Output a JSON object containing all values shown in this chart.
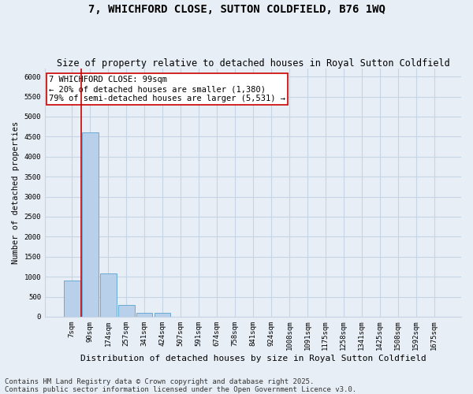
{
  "title": "7, WHICHFORD CLOSE, SUTTON COLDFIELD, B76 1WQ",
  "subtitle": "Size of property relative to detached houses in Royal Sutton Coldfield",
  "xlabel": "Distribution of detached houses by size in Royal Sutton Coldfield",
  "ylabel": "Number of detached properties",
  "categories": [
    "7sqm",
    "90sqm",
    "174sqm",
    "257sqm",
    "341sqm",
    "424sqm",
    "507sqm",
    "591sqm",
    "674sqm",
    "758sqm",
    "841sqm",
    "924sqm",
    "1008sqm",
    "1091sqm",
    "1175sqm",
    "1258sqm",
    "1341sqm",
    "1425sqm",
    "1508sqm",
    "1592sqm",
    "1675sqm"
  ],
  "values": [
    900,
    4600,
    1080,
    300,
    100,
    100,
    5,
    5,
    5,
    5,
    5,
    5,
    5,
    5,
    5,
    5,
    5,
    5,
    5,
    5,
    5
  ],
  "bar_color": "#b8d0ea",
  "bar_edge_color": "#6aaad4",
  "grid_color": "#c5d5e5",
  "background_color": "#e8eef5",
  "vline_x": 0.5,
  "vline_color": "#cc0000",
  "annotation_text": "7 WHICHFORD CLOSE: 99sqm\n← 20% of detached houses are smaller (1,380)\n79% of semi-detached houses are larger (5,531) →",
  "annotation_box_color": "white",
  "annotation_box_edge": "#cc0000",
  "ylim": [
    0,
    6200
  ],
  "yticks": [
    0,
    500,
    1000,
    1500,
    2000,
    2500,
    3000,
    3500,
    4000,
    4500,
    5000,
    5500,
    6000
  ],
  "footer_line1": "Contains HM Land Registry data © Crown copyright and database right 2025.",
  "footer_line2": "Contains public sector information licensed under the Open Government Licence v3.0.",
  "title_fontsize": 10,
  "subtitle_fontsize": 8.5,
  "tick_fontsize": 6.5,
  "ylabel_fontsize": 7.5,
  "xlabel_fontsize": 8,
  "annotation_fontsize": 7.5,
  "footer_fontsize": 6.5
}
